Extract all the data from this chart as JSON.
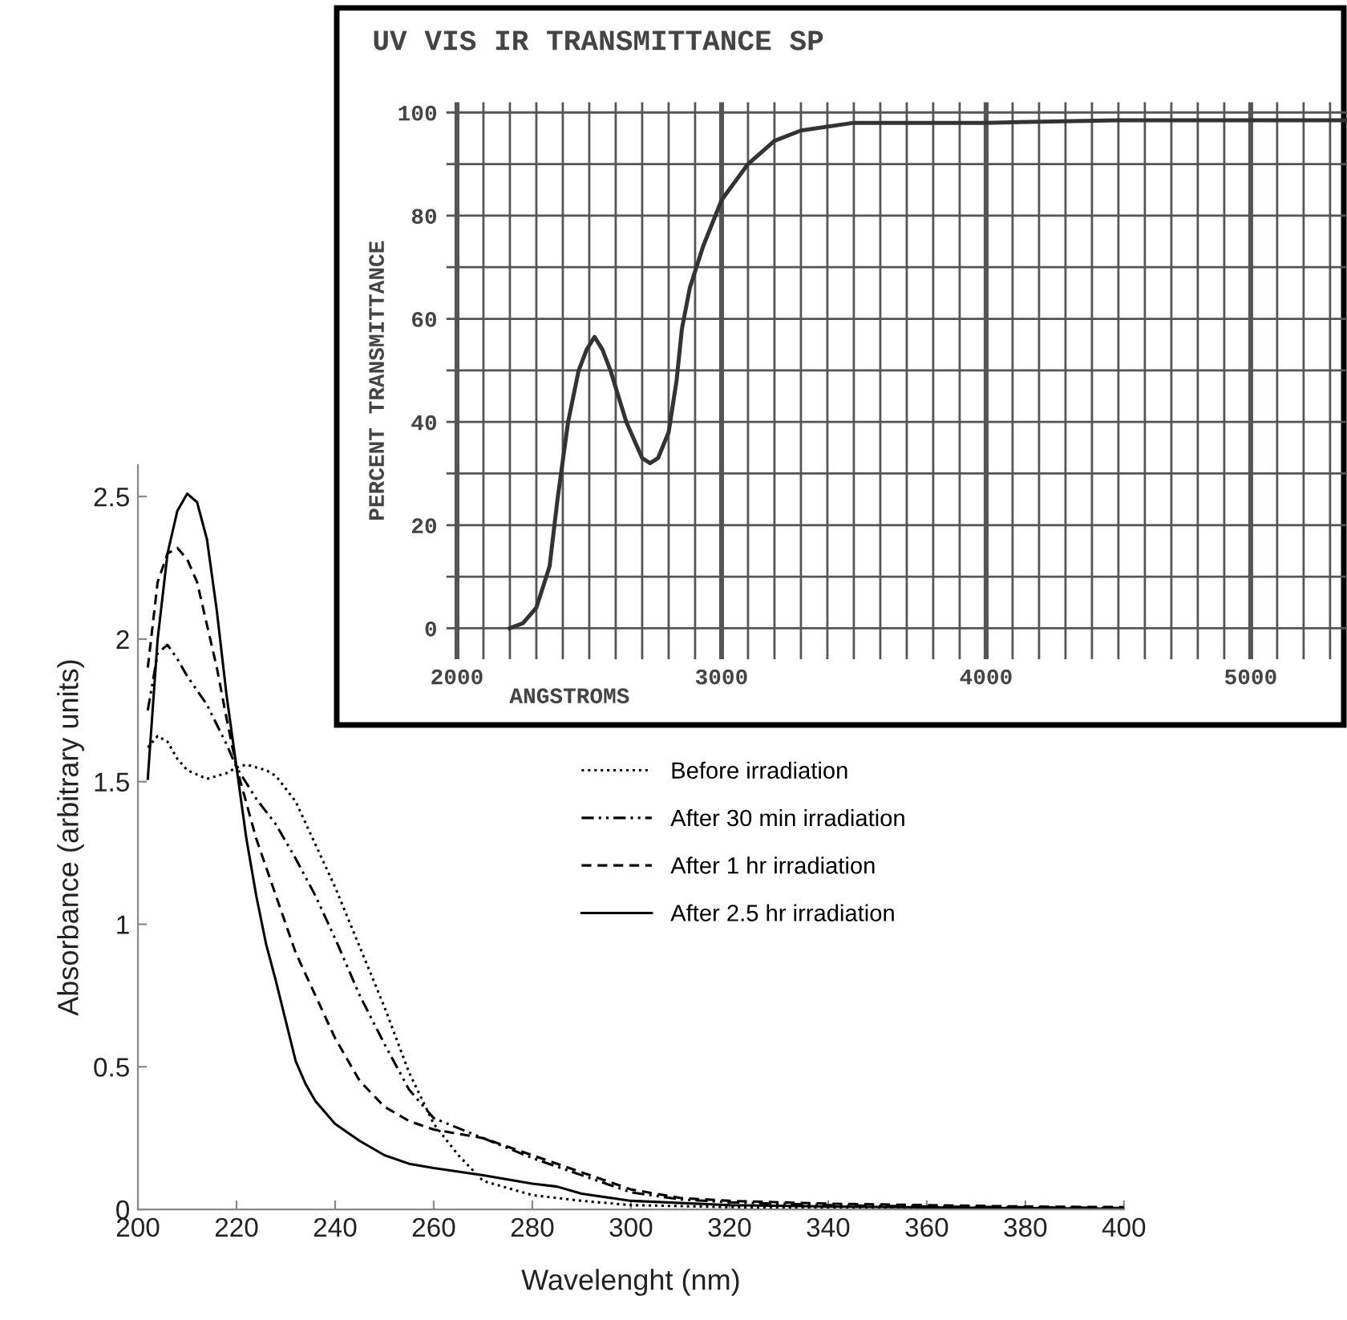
{
  "chart_data": [
    {
      "type": "line",
      "title": "UV VIS IR TRANSMITTANCE SP",
      "xlabel": "ANGSTROMS",
      "ylabel": "PERCENT TRANSMITTANCE",
      "xlim": [
        1960,
        5364
      ],
      "ylim": [
        -6,
        102
      ],
      "xticks": [
        2000,
        {
          "value": 2100,
          "label": null
        },
        {
          "value": 2200,
          "label": null
        },
        {
          "value": 2300,
          "label": null
        },
        {
          "value": 2400,
          "label": null
        },
        {
          "value": 2500,
          "label": null
        },
        {
          "value": 2600,
          "label": null
        },
        {
          "value": 2700,
          "label": null
        },
        {
          "value": 2800,
          "label": null
        },
        {
          "value": 2900,
          "label": null
        },
        3000,
        {
          "value": 3100,
          "label": null
        },
        {
          "value": 3200,
          "label": null
        },
        {
          "value": 3300,
          "label": null
        },
        {
          "value": 3400,
          "label": null
        },
        {
          "value": 3500,
          "label": null
        },
        {
          "value": 3600,
          "label": null
        },
        {
          "value": 3700,
          "label": null
        },
        {
          "value": 3800,
          "label": null
        },
        {
          "value": 3900,
          "label": null
        },
        4000,
        {
          "value": 4100,
          "label": null
        },
        {
          "value": 4200,
          "label": null
        },
        {
          "value": 4300,
          "label": null
        },
        {
          "value": 4400,
          "label": null
        },
        {
          "value": 4500,
          "label": null
        },
        {
          "value": 4600,
          "label": null
        },
        {
          "value": 4700,
          "label": null
        },
        {
          "value": 4800,
          "label": null
        },
        {
          "value": 4900,
          "label": null
        },
        5000,
        {
          "value": 5100,
          "label": null
        },
        {
          "value": 5200,
          "label": null
        },
        {
          "value": 5300,
          "label": null
        }
      ],
      "yticks": [
        0,
        {
          "value": 10,
          "label": null
        },
        20,
        {
          "value": 30,
          "label": null
        },
        40,
        {
          "value": 50,
          "label": null
        },
        60,
        {
          "value": 70,
          "label": null
        },
        80,
        {
          "value": 90,
          "label": null
        },
        100
      ],
      "grid": true,
      "x": [
        2200,
        2250,
        2300,
        2350,
        2380,
        2420,
        2460,
        2490,
        2520,
        2550,
        2580,
        2640,
        2700,
        2730,
        2760,
        2800,
        2830,
        2850,
        2880,
        2930,
        3000,
        3100,
        3200,
        3300,
        3500,
        4000,
        4500,
        5364
      ],
      "series": [
        {
          "color": "#333333",
          "values": [
            0,
            1,
            4,
            12,
            25,
            40,
            50,
            54,
            56.5,
            54,
            50,
            40,
            33,
            32,
            33,
            38,
            48,
            58,
            66,
            74,
            83,
            90,
            94.5,
            96.5,
            98,
            98,
            98.5,
            98.5
          ]
        }
      ]
    },
    {
      "type": "line",
      "xlabel": "Wavelenght (nm)",
      "ylabel": "Absorbance (arbitrary units)",
      "xlim": [
        200,
        400
      ],
      "ylim": [
        0,
        2.61
      ],
      "xticks": [
        200,
        220,
        240,
        260,
        280,
        300,
        320,
        340,
        360,
        380,
        400
      ],
      "yticks": [
        0,
        0.5,
        1,
        1.5,
        2,
        2.5
      ],
      "legend": "right",
      "series": [
        {
          "name": "Before irradiation",
          "color": "#000000",
          "line_style": "dotted",
          "x": [
            202,
            204,
            206,
            208,
            210,
            214,
            218,
            220,
            222,
            226,
            228,
            232,
            236,
            240,
            245,
            250,
            255,
            260,
            265,
            270,
            280,
            290,
            300,
            320,
            340,
            400
          ],
          "values": [
            1.62,
            1.66,
            1.64,
            1.58,
            1.54,
            1.51,
            1.53,
            1.55,
            1.56,
            1.54,
            1.52,
            1.43,
            1.28,
            1.13,
            0.92,
            0.71,
            0.48,
            0.3,
            0.19,
            0.1,
            0.05,
            0.03,
            0.015,
            0.008,
            0.005,
            0.002
          ]
        },
        {
          "name": "After 30 min irradiation",
          "color": "#000000",
          "line_style": "dashdot",
          "x": [
            202,
            204,
            206,
            208,
            210,
            214,
            218,
            220,
            224,
            228,
            232,
            236,
            240,
            245,
            250,
            255,
            260,
            270,
            280,
            290,
            300,
            310,
            320,
            340,
            360,
            400
          ],
          "values": [
            1.75,
            1.95,
            1.98,
            1.93,
            1.87,
            1.77,
            1.63,
            1.55,
            1.44,
            1.35,
            1.23,
            1.1,
            0.95,
            0.75,
            0.58,
            0.42,
            0.32,
            0.25,
            0.18,
            0.12,
            0.06,
            0.035,
            0.025,
            0.015,
            0.01,
            0.005
          ]
        },
        {
          "name": "After 1 hr irradiation",
          "color": "#000000",
          "line_style": "dashed",
          "x": [
            202,
            204,
            206,
            208,
            210,
            212,
            214,
            216,
            218,
            220,
            224,
            228,
            232,
            236,
            240,
            245,
            250,
            255,
            260,
            270,
            280,
            290,
            300,
            310,
            320,
            340,
            360,
            380,
            400
          ],
          "values": [
            1.9,
            2.2,
            2.3,
            2.32,
            2.28,
            2.2,
            2.05,
            1.9,
            1.72,
            1.55,
            1.3,
            1.1,
            0.9,
            0.75,
            0.6,
            0.45,
            0.36,
            0.31,
            0.28,
            0.25,
            0.19,
            0.13,
            0.07,
            0.04,
            0.03,
            0.02,
            0.015,
            0.01,
            0.008
          ]
        },
        {
          "name": "After 2.5 hr irradiation",
          "color": "#000000",
          "line_style": "solid",
          "x": [
            202,
            204,
            206,
            208,
            210,
            212,
            214,
            216,
            218,
            220,
            222,
            224,
            226,
            228,
            230,
            232,
            234,
            236,
            240,
            245,
            250,
            255,
            260,
            270,
            280,
            285,
            290,
            300,
            320,
            340,
            360,
            380,
            400
          ],
          "values": [
            1.51,
            2.0,
            2.3,
            2.45,
            2.51,
            2.48,
            2.35,
            2.1,
            1.8,
            1.55,
            1.3,
            1.1,
            0.93,
            0.8,
            0.66,
            0.52,
            0.44,
            0.38,
            0.3,
            0.24,
            0.19,
            0.16,
            0.145,
            0.12,
            0.09,
            0.08,
            0.055,
            0.03,
            0.015,
            0.01,
            0.007,
            0.004,
            0.002
          ]
        }
      ]
    }
  ]
}
